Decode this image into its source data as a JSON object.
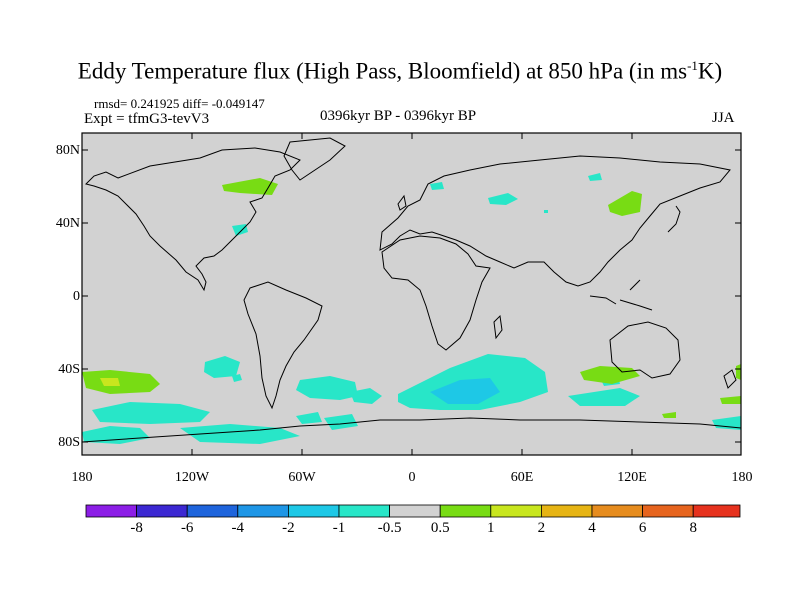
{
  "title": {
    "main": "Eddy Temperature flux (High Pass, Bloomfield) at 850 hPa (in ms",
    "superscript": "-1",
    "suffix": "K)"
  },
  "stats": "rmsd= 0.241925 diff= -0.049147",
  "experiment": "Expt = tfmG3-tevV3",
  "period": "0396kyr BP - 0396kyr BP",
  "season": "JJA",
  "axes": {
    "lat_labels": [
      "80N",
      "40N",
      "0",
      "40S",
      "80S"
    ],
    "lon_labels": [
      "180",
      "120W",
      "60W",
      "0",
      "60E",
      "120E",
      "180"
    ]
  },
  "colorbar": {
    "labels": [
      "-8",
      "-6",
      "-4",
      "-2",
      "-1",
      "-0.5",
      "0.5",
      "1",
      "2",
      "4",
      "6",
      "8"
    ],
    "colors": [
      "#8c1ee6",
      "#3c28d2",
      "#1e64dc",
      "#1e96e6",
      "#1ec8e6",
      "#28e6c8",
      "#d2d2d2",
      "#78dc14",
      "#c8e61e",
      "#e6b414",
      "#e68c1e",
      "#e6641e",
      "#e6321e"
    ]
  },
  "colors": {
    "land_background": "#d2d2d2",
    "negative_light": "#28e6c8",
    "negative_mid": "#1ec8e6",
    "positive_light": "#78dc14",
    "positive_mid": "#c8e61e"
  }
}
